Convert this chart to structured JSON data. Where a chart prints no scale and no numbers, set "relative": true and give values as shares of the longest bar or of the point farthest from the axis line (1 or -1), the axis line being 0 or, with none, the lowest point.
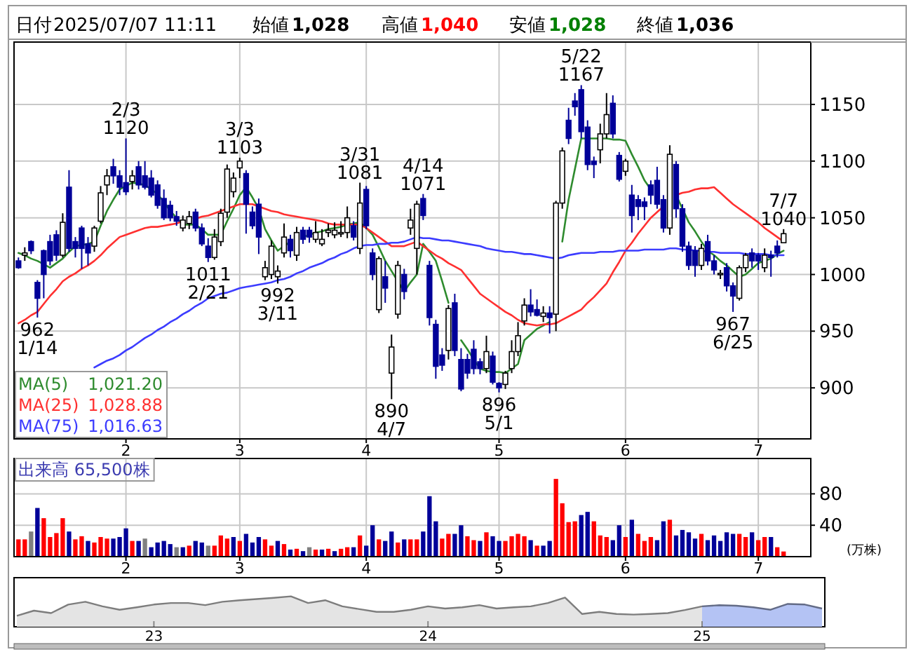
{
  "chart_data": [
    {
      "type": "candlestick",
      "annotations": [
        "日付",
        "2025/07/07 11:11",
        "始値",
        "1,028",
        "高値",
        "1,040",
        "安値",
        "1,028",
        "終値",
        "1,036",
        {
          "text": "962\n1/14",
          "y": 962
        },
        {
          "text": "2/3\n1120",
          "y": 1120
        },
        {
          "text": "1011\n2/21",
          "y": 1011
        },
        {
          "text": "3/3\n1103",
          "y": 1103
        },
        {
          "text": "992\n3/11",
          "y": 992
        },
        {
          "text": "3/31\n1081",
          "y": 1081
        },
        {
          "text": "890\n4/7",
          "y": 890
        },
        {
          "text": "4/14\n1071",
          "y": 1071
        },
        {
          "text": "896\n5/1",
          "y": 896
        },
        {
          "text": "5/22\n1167",
          "y": 1167
        },
        {
          "text": "967\n6/25",
          "y": 967
        },
        {
          "text": "7/7\n1040",
          "y": 1040
        }
      ],
      "categories": [
        null,
        null,
        null,
        null,
        null,
        null,
        null,
        null,
        null,
        null,
        null,
        null,
        null,
        null,
        null,
        null,
        null,
        "2",
        null,
        null,
        null,
        null,
        null,
        null,
        null,
        null,
        null,
        null,
        null,
        null,
        null,
        null,
        null,
        null,
        null,
        "3",
        null,
        null,
        null,
        null,
        null,
        null,
        null,
        null,
        null,
        null,
        null,
        null,
        null,
        null,
        null,
        null,
        null,
        null,
        null,
        "4",
        null,
        null,
        null,
        null,
        null,
        null,
        null,
        null,
        null,
        null,
        null,
        null,
        null,
        null,
        null,
        null,
        null,
        null,
        null,
        null,
        "5",
        null,
        null,
        null,
        null,
        null,
        null,
        null,
        null,
        null,
        null,
        null,
        null,
        null,
        null,
        null,
        null,
        null,
        null,
        null,
        "6",
        null,
        null,
        null,
        null,
        null,
        null,
        null,
        null,
        null,
        null,
        null,
        null,
        null,
        null,
        null,
        null,
        null,
        null,
        null,
        null,
        "7",
        null,
        null,
        null,
        null
      ],
      "ohlc": [
        [
          1012,
          1015,
          1005,
          1006
        ],
        [
          1017,
          1024,
          1012,
          1019
        ],
        [
          1029,
          1030,
          1018,
          1021
        ],
        [
          993,
          995,
          962,
          979
        ],
        [
          1021,
          1022,
          979,
          1000
        ],
        [
          1029,
          1035,
          1008,
          1012
        ],
        [
          1035,
          1039,
          1012,
          1017
        ],
        [
          1017,
          1054,
          1015,
          1046
        ],
        [
          1077,
          1092,
          1020,
          1023
        ],
        [
          1029,
          1033,
          1015,
          1023
        ],
        [
          1041,
          1043,
          1005,
          1023
        ],
        [
          1027,
          1033,
          1008,
          1019
        ],
        [
          1025,
          1043,
          1020,
          1041
        ],
        [
          1047,
          1078,
          1045,
          1072
        ],
        [
          1079,
          1093,
          1070,
          1087
        ],
        [
          1095,
          1102,
          1080,
          1087
        ],
        [
          1087,
          1092,
          1070,
          1077
        ],
        [
          1081,
          1120,
          1070,
          1073
        ],
        [
          1082,
          1092,
          1075,
          1087
        ],
        [
          1095,
          1100,
          1075,
          1079
        ],
        [
          1087,
          1100,
          1075,
          1077
        ],
        [
          1085,
          1092,
          1068,
          1070
        ],
        [
          1079,
          1083,
          1058,
          1061
        ],
        [
          1067,
          1075,
          1048,
          1050
        ],
        [
          1061,
          1065,
          1047,
          1050
        ],
        [
          1051,
          1056,
          1043,
          1047
        ],
        [
          1041,
          1052,
          1038,
          1048
        ],
        [
          1045,
          1056,
          1040,
          1051
        ],
        [
          1055,
          1058,
          1038,
          1041
        ],
        [
          1041,
          1045,
          1025,
          1027
        ],
        [
          1025,
          1032,
          1011,
          1015
        ],
        [
          1015,
          1040,
          1013,
          1033
        ],
        [
          1029,
          1058,
          1025,
          1054
        ],
        [
          1055,
          1097,
          1050,
          1093
        ],
        [
          1073,
          1090,
          1068,
          1085
        ],
        [
          1094,
          1103,
          1085,
          1100
        ],
        [
          1089,
          1092,
          1036,
          1062
        ],
        [
          1055,
          1060,
          1040,
          1043
        ],
        [
          1062,
          1067,
          1018,
          1033
        ],
        [
          998,
          1012,
          995,
          1006
        ],
        [
          1000,
          1030,
          996,
          1025
        ],
        [
          998,
          1008,
          992,
          1003
        ],
        [
          1019,
          1045,
          1015,
          1033
        ],
        [
          1031,
          1035,
          1015,
          1021
        ],
        [
          1017,
          1042,
          1012,
          1037
        ],
        [
          1039,
          1042,
          1027,
          1031
        ],
        [
          1039,
          1042,
          1028,
          1033
        ],
        [
          1031,
          1047,
          1028,
          1037
        ],
        [
          1027,
          1040,
          1025,
          1031
        ],
        [
          1037,
          1045,
          1033,
          1039
        ],
        [
          1035,
          1046,
          1032,
          1039
        ],
        [
          1037,
          1047,
          1033,
          1037
        ],
        [
          1037,
          1060,
          1032,
          1050
        ],
        [
          1043,
          1047,
          1030,
          1033
        ],
        [
          1023,
          1081,
          1018,
          1063
        ],
        [
          1075,
          1078,
          1040,
          1043
        ],
        [
          1019,
          1023,
          995,
          1000
        ],
        [
          969,
          1016,
          966,
          1014
        ],
        [
          998,
          1012,
          975,
          988
        ],
        [
          913,
          947,
          890,
          936
        ],
        [
          965,
          1012,
          961,
          1008
        ],
        [
          1000,
          1005,
          978,
          985
        ],
        [
          1041,
          1058,
          1035,
          1048
        ],
        [
          1023,
          1065,
          1000,
          1062
        ],
        [
          1067,
          1071,
          1048,
          1052
        ],
        [
          1008,
          1012,
          955,
          962
        ],
        [
          956,
          960,
          908,
          919
        ],
        [
          929,
          935,
          915,
          920
        ],
        [
          933,
          973,
          925,
          970
        ],
        [
          975,
          983,
          928,
          933
        ],
        [
          925,
          935,
          897,
          899
        ],
        [
          925,
          930,
          908,
          913
        ],
        [
          934,
          942,
          912,
          917
        ],
        [
          923,
          926,
          912,
          917
        ],
        [
          917,
          946,
          913,
          932
        ],
        [
          928,
          932,
          903,
          905
        ],
        [
          904,
          905,
          896,
          900
        ],
        [
          903,
          915,
          899,
          913
        ],
        [
          917,
          942,
          913,
          932
        ],
        [
          932,
          958,
          928,
          946
        ],
        [
          959,
          979,
          955,
          973
        ],
        [
          973,
          987,
          963,
          967
        ],
        [
          969,
          978,
          963,
          964
        ],
        [
          963,
          972,
          958,
          966
        ],
        [
          966,
          972,
          948,
          962
        ],
        [
          965,
          1065,
          950,
          1063
        ],
        [
          1063,
          1112,
          1058,
          1109
        ],
        [
          1136,
          1147,
          1115,
          1120
        ],
        [
          1153,
          1160,
          1140,
          1148
        ],
        [
          1163,
          1167,
          1120,
          1126
        ],
        [
          1130,
          1136,
          1092,
          1097
        ],
        [
          1100,
          1104,
          1085,
          1097
        ],
        [
          1110,
          1133,
          1098,
          1124
        ],
        [
          1124,
          1160,
          1120,
          1141
        ],
        [
          1151,
          1158,
          1120,
          1124
        ],
        [
          1105,
          1108,
          1082,
          1084
        ],
        [
          1091,
          1102,
          1087,
          1100
        ],
        [
          1070,
          1079,
          1037,
          1052
        ],
        [
          1066,
          1070,
          1048,
          1060
        ],
        [
          1064,
          1068,
          1048,
          1060
        ],
        [
          1079,
          1083,
          1062,
          1070
        ],
        [
          1083,
          1095,
          1058,
          1062
        ],
        [
          1066,
          1070,
          1037,
          1041
        ],
        [
          1041,
          1114,
          1035,
          1106
        ],
        [
          1097,
          1100,
          1050,
          1058
        ],
        [
          1058,
          1062,
          1020,
          1025
        ],
        [
          1025,
          1029,
          1004,
          1008
        ],
        [
          1021,
          1025,
          998,
          1008
        ],
        [
          1008,
          1027,
          1004,
          1023
        ],
        [
          1029,
          1035,
          1008,
          1012
        ],
        [
          1012,
          1017,
          1000,
          1004
        ],
        [
          1000,
          1004,
          996,
          1001
        ],
        [
          1006,
          1010,
          985,
          990
        ],
        [
          990,
          993,
          967,
          981
        ],
        [
          979,
          1008,
          977,
          1006
        ],
        [
          1006,
          1019,
          1002,
          1017
        ],
        [
          1019,
          1023,
          1006,
          1012
        ],
        [
          1017,
          1019,
          1004,
          1012
        ],
        [
          1006,
          1023,
          1002,
          1017
        ],
        [
          1017,
          1021,
          998,
          1015
        ],
        [
          1025,
          1030,
          1015,
          1019
        ],
        [
          1028,
          1040,
          1028,
          1036
        ]
      ],
      "series": [
        {
          "type": "line",
          "name": "MA(5) 1,021.20",
          "color": "#2e8b2e",
          "values": [
            1019,
            1017,
            1014,
            1012,
            1009,
            1006,
            1010,
            1014,
            1020,
            1025,
            1026,
            1027,
            1029,
            1043,
            1056,
            1066,
            1075,
            1078,
            1081,
            1080,
            1079,
            1075,
            1071,
            1064,
            1056,
            1050,
            1044,
            1044,
            1044,
            1040,
            1035,
            1035,
            1035,
            1047,
            1058,
            1070,
            1077,
            1068,
            1058,
            1040,
            1030,
            1021,
            1025,
            1029,
            null,
            1033,
            1035,
            1037,
            1038,
            1040,
            1041,
            1042,
            1044,
            1045,
            1046,
            1041,
            1035,
            1024,
            1012,
            1003,
            994,
            985,
            993,
            1000,
            1027,
            1020,
            1012,
            994,
            975,
            null,
            942,
            934,
            925,
            917,
            915,
            914,
            914,
            913,
            917,
            921,
            942,
            947,
            952,
            955,
            958,
            null,
            1029,
            1066,
            1093,
            1120,
            1120,
            1120,
            1120,
            1120,
            1119,
            1119,
            1118,
            1106,
            1095,
            1083,
            1075,
            null,
            null,
            null,
            1070,
            1058,
            1046,
            1038,
            1029,
            1021,
            1017,
            1012,
            1008,
            1003,
            998,
            1000,
            1005,
            1010,
            1012,
            1014,
            1018,
            1021
          ]
        },
        {
          "type": "line",
          "name": "MA(25) 1,028.88",
          "color": "#ff3030",
          "values": [
            957,
            960,
            964,
            967,
            974,
            981,
            987,
            994,
            998,
            1001,
            1005,
            1008,
            1012,
            1017,
            1023,
            1028,
            1033,
            1035,
            1037,
            1039,
            1041,
            1042,
            1042,
            1043,
            1044,
            1045,
            1047,
            null,
            1049,
            1051,
            1052,
            1054,
            1056,
            1058,
            1060,
            1062,
            1062,
            1062,
            1060,
            1058,
            1056,
            1055,
            1053,
            1052,
            1051,
            1050,
            1049,
            1048,
            1047,
            1045,
            1044,
            1044,
            1044,
            1044,
            1044,
            1041,
            1037,
            1033,
            1029,
            1025,
            1025,
            1025,
            1027,
            1029,
            1025,
            1021,
            1017,
            1014,
            1010,
            1007,
            1004,
            997,
            990,
            983,
            979,
            975,
            971,
            967,
            964,
            960,
            957,
            956,
            955,
            956,
            956,
            957,
            960,
            963,
            966,
            969,
            975,
            980,
            986,
            992,
            1002,
            1011,
            1021,
            1028,
            1036,
            1043,
            1050,
            1055,
            1060,
            null,
            1070,
            1072,
            1073,
            1075,
            1076,
            1076,
            1077,
            1072,
            1067,
            1062,
            1058,
            1054,
            1050,
            1046,
            1041,
            1037,
            1033,
            1029
          ]
        },
        {
          "type": "line",
          "name": "MA(75) 1,016.63",
          "color": "#3c3cff",
          "values": [
            null,
            null,
            null,
            null,
            null,
            null,
            null,
            null,
            null,
            null,
            null,
            null,
            918,
            921,
            924,
            926,
            929,
            933,
            936,
            940,
            944,
            947,
            951,
            954,
            958,
            961,
            965,
            968,
            972,
            975,
            979,
            981,
            983,
            984,
            986,
            988,
            989,
            990,
            991,
            992,
            993,
            995,
            996,
            998,
            1001,
            1003,
            1006,
            1008,
            1010,
            1013,
            1015,
            1018,
            1020,
            1023,
            1025,
            1026,
            1026,
            1027,
            1027,
            1028,
            1028,
            1029,
            1031,
            1033,
            1032,
            1032,
            1031,
            1030,
            1030,
            1029,
            1028,
            1027,
            1026,
            1025,
            1023,
            1022,
            1021,
            1020,
            1020,
            1019,
            1018,
            1018,
            1017,
            1016,
            1015,
            1014,
            1015,
            1017,
            1018,
            1019,
            1019,
            1019,
            1020,
            1020,
            1020,
            1021,
            1021,
            1021,
            1021,
            1022,
            1022,
            1022,
            1022,
            1023,
            1023,
            1022,
            1022,
            1021,
            1021,
            1020,
            1020,
            1019,
            1019,
            1019,
            1019,
            1018,
            1018,
            1018,
            1018,
            1017,
            1017,
            1017
          ]
        }
      ],
      "ylim": [
        855,
        1205
      ],
      "yticks": [
        900,
        950,
        1000,
        1050,
        1100,
        1150
      ],
      "grid": true,
      "legend": "bottom left"
    },
    {
      "type": "bar",
      "annotations": [
        "出来高 65,500株"
      ],
      "ylabel": "(万株)",
      "categories": [
        null,
        null,
        null,
        null,
        null,
        null,
        null,
        null,
        null,
        null,
        null,
        null,
        null,
        null,
        null,
        null,
        null,
        "2",
        null,
        null,
        null,
        null,
        null,
        null,
        null,
        null,
        null,
        null,
        null,
        null,
        null,
        null,
        null,
        null,
        null,
        "3",
        null,
        null,
        null,
        null,
        null,
        null,
        null,
        null,
        null,
        null,
        null,
        null,
        null,
        null,
        null,
        null,
        null,
        null,
        null,
        "4",
        null,
        null,
        null,
        null,
        null,
        null,
        null,
        null,
        null,
        null,
        null,
        null,
        null,
        null,
        null,
        null,
        null,
        null,
        null,
        null,
        "5",
        null,
        null,
        null,
        null,
        null,
        null,
        null,
        null,
        null,
        null,
        null,
        null,
        null,
        null,
        null,
        null,
        null,
        null,
        null,
        "6",
        null,
        null,
        null,
        null,
        null,
        null,
        null,
        null,
        null,
        null,
        null,
        null,
        null,
        null,
        null,
        null,
        null,
        null,
        null,
        null,
        "7",
        null,
        null,
        null,
        null
      ],
      "values": [
        22,
        22,
        32,
        62,
        49,
        25,
        30,
        49,
        32,
        22,
        26,
        20,
        18,
        25,
        23,
        23,
        25,
        36,
        20,
        20,
        23,
        12,
        18,
        20,
        16,
        12,
        12,
        14,
        20,
        18,
        14,
        14,
        27,
        23,
        25,
        20,
        29,
        18,
        25,
        22,
        14,
        20,
        16,
        9,
        10,
        7,
        12,
        9,
        9,
        10,
        7,
        10,
        12,
        12,
        27,
        14,
        40,
        22,
        20,
        32,
        18,
        22,
        22,
        22,
        32,
        77,
        45,
        23,
        29,
        29,
        40,
        26,
        21,
        20,
        31,
        26,
        20,
        20,
        26,
        29,
        26,
        21,
        14,
        14,
        20,
        99,
        68,
        44,
        45,
        53,
        57,
        45,
        27,
        25,
        21,
        40,
        25,
        47,
        29,
        20,
        25,
        21,
        45,
        47,
        27,
        34,
        31,
        23,
        29,
        21,
        27,
        20,
        31,
        29,
        29,
        25,
        31,
        21,
        25,
        25,
        12,
        6.55
      ],
      "colors": [
        "#ff0000",
        "#ff0000",
        "#808080",
        "#000099",
        "#ff0000",
        "#ff0000",
        "#ff0000",
        "#ff0000",
        "#000099",
        "#ff0000",
        "#ff0000",
        "#000099",
        "#ff0000",
        "#ff0000",
        "#ff0000",
        "#000099",
        "#000099",
        "#000099",
        "#ff0000",
        "#000099",
        "#808080",
        "#000099",
        "#000099",
        "#000099",
        "#000099",
        "#808080",
        "#000099",
        "#ff0000",
        "#000099",
        "#000099",
        "#808080",
        "#ff0000",
        "#ff0000",
        "#ff0000",
        "#000099",
        "#ff0000",
        "#000099",
        "#000099",
        "#000099",
        "#ff0000",
        "#ff0000",
        "#000099",
        "#ff0000",
        "#000099",
        "#ff0000",
        "#000099",
        "#808080",
        "#ff0000",
        "#000099",
        "#ff0000",
        "#000099",
        "#ff0000",
        "#ff0000",
        "#000099",
        "#ff0000",
        "#000099",
        "#000099",
        "#ff0000",
        "#000099",
        "#000099",
        "#ff0000",
        "#000099",
        "#ff0000",
        "#ff0000",
        "#000099",
        "#000099",
        "#000099",
        "#ff0000",
        "#ff0000",
        "#000099",
        "#000099",
        "#ff0000",
        "#ff0000",
        "#000099",
        "#ff0000",
        "#000099",
        "#000099",
        "#ff0000",
        "#ff0000",
        "#ff0000",
        "#ff0000",
        "#000099",
        "#ff0000",
        "#000099",
        "#000099",
        "#ff0000",
        "#ff0000",
        "#ff0000",
        "#ff0000",
        "#000099",
        "#000099",
        "#ff0000",
        "#ff0000",
        "#ff0000",
        "#000099",
        "#000099",
        "#ff0000",
        "#000099",
        "#ff0000",
        "#ff0000",
        "#ff0000",
        "#000099",
        "#000099",
        "#ff0000",
        "#000099",
        "#000099",
        "#000099",
        "#000099",
        "#ff0000",
        "#000099",
        "#000099",
        "#000099",
        "#000099",
        "#000099",
        "#ff0000",
        "#ff0000",
        "#000099",
        "#ff0000",
        "#ff0000",
        "#000099",
        "#ff0000",
        "#ff0000"
      ],
      "ylim": [
        0,
        125
      ],
      "yticks": [
        40,
        80
      ],
      "grid": true
    },
    {
      "type": "area",
      "relative": true,
      "categories": [
        null,
        null,
        null,
        null,
        null,
        null,
        null,
        null,
        "23",
        null,
        null,
        null,
        null,
        null,
        null,
        null,
        null,
        null,
        null,
        null,
        null,
        null,
        null,
        null,
        "24",
        null,
        null,
        null,
        null,
        null,
        null,
        null,
        null,
        null,
        null,
        null,
        null,
        null,
        null,
        null,
        "25",
        null,
        null,
        null,
        null,
        null,
        null,
        null
      ],
      "series": [
        {
          "color": "#e4e4e4",
          "values": [
            0.36,
            0.53,
            0.45,
            0.73,
            0.82,
            0.67,
            0.56,
            0.64,
            0.73,
            0.78,
            0.78,
            0.71,
            0.82,
            0.87,
            0.91,
            0.95,
            1,
            0.78,
            0.87,
            0.67,
            0.58,
            0.49,
            0.49,
            0.56,
            0.67,
            0.6,
            0.64,
            0.71,
            0.6,
            0.64,
            0.67,
            0.78,
            0.96,
            0.42,
            0.49,
            0.42,
            0.4,
            0.42,
            0.45,
            0.55,
            0.67,
            null,
            null,
            null,
            null,
            null,
            null,
            null
          ]
        },
        {
          "color": "#b4c3f4",
          "values": [
            null,
            null,
            null,
            null,
            null,
            null,
            null,
            null,
            null,
            null,
            null,
            null,
            null,
            null,
            null,
            null,
            null,
            null,
            null,
            null,
            null,
            null,
            null,
            null,
            null,
            null,
            null,
            null,
            null,
            null,
            null,
            null,
            null,
            null,
            null,
            null,
            null,
            null,
            null,
            null,
            0.67,
            0.71,
            0.69,
            0.64,
            0.56,
            0.75,
            0.73,
            0.6
          ]
        }
      ]
    }
  ]
}
